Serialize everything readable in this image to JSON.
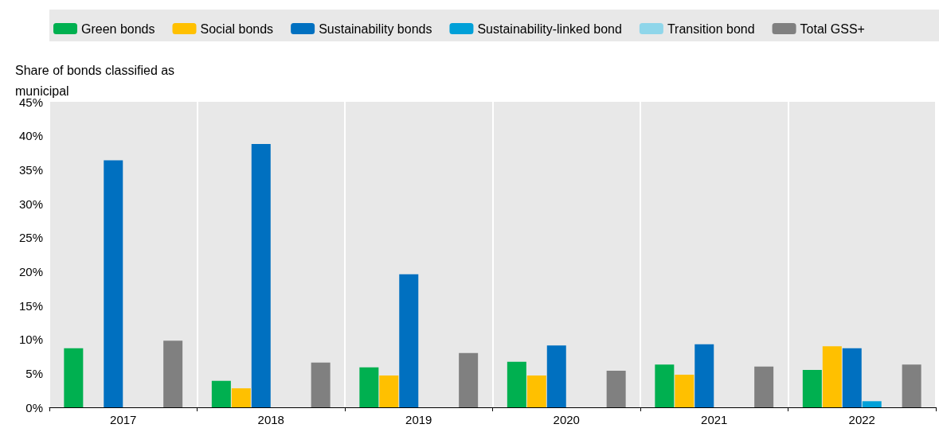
{
  "chart_data": {
    "type": "bar",
    "ylabel": "Share of bonds classified as municipal",
    "categories": [
      "2017",
      "2018",
      "2019",
      "2020",
      "2021",
      "2022"
    ],
    "series": [
      {
        "name": "Green bonds",
        "color": "#00b050",
        "values": [
          8.7,
          3.9,
          5.9,
          6.7,
          6.3,
          5.5
        ]
      },
      {
        "name": "Social bonds",
        "color": "#ffc000",
        "values": [
          null,
          2.8,
          4.7,
          4.7,
          4.8,
          9.0
        ]
      },
      {
        "name": "Sustainability bonds",
        "color": "#0070c0",
        "values": [
          36.4,
          38.8,
          19.6,
          9.1,
          9.3,
          8.7
        ]
      },
      {
        "name": "Sustainability-linked bond",
        "color": "#00a0d8",
        "values": [
          null,
          null,
          null,
          null,
          null,
          0.9
        ]
      },
      {
        "name": "Transition bond",
        "color": "#8fd6ea",
        "values": [
          null,
          null,
          null,
          null,
          null,
          null
        ]
      },
      {
        "name": "Total GSS+",
        "color": "#808080",
        "values": [
          9.8,
          6.6,
          8.0,
          5.4,
          6.0,
          6.3
        ]
      }
    ],
    "ylim": [
      0,
      45
    ],
    "yticks": [
      {
        "value": 0,
        "label": "0%"
      },
      {
        "value": 5,
        "label": "5%"
      },
      {
        "value": 10,
        "label": "10%"
      },
      {
        "value": 15,
        "label": "15%"
      },
      {
        "value": 20,
        "label": "20%"
      },
      {
        "value": 25,
        "label": "25%"
      },
      {
        "value": 30,
        "label": "30%"
      },
      {
        "value": 35,
        "label": "35%"
      },
      {
        "value": 40,
        "label": "40%"
      },
      {
        "value": 45,
        "label": "45%"
      }
    ],
    "grid": "x",
    "legend": "top"
  }
}
